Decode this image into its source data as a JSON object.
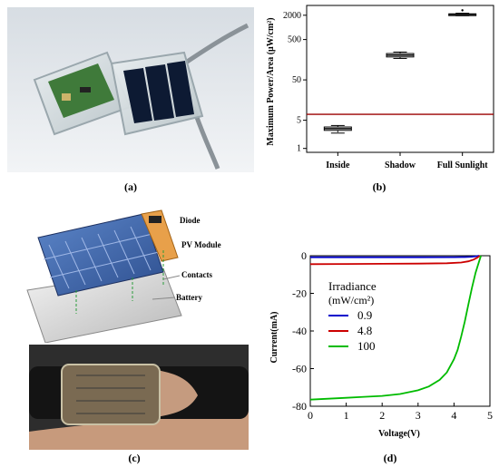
{
  "panels": {
    "a": {
      "caption": "(a)"
    },
    "b": {
      "caption": "(b)"
    },
    "c": {
      "caption": "(c)"
    },
    "d": {
      "caption": "(d)"
    }
  },
  "diagram_c": {
    "labels": {
      "diode": "Diode",
      "pv_module": "PV Module",
      "contacts": "Contacts",
      "battery": "Battery"
    }
  },
  "chart_data": [
    {
      "type": "box",
      "ylabel": "Maximum Power/Area (μW/cm²)",
      "y_scale": "log",
      "ylim": [
        0.8,
        3500
      ],
      "yticks": [
        1,
        5,
        50,
        500,
        2000
      ],
      "categories": [
        "Inside",
        "Shadow",
        "Full Sunlight"
      ],
      "boxes": [
        {
          "category": "Inside",
          "min": 2.4,
          "q1": 2.8,
          "median": 3.1,
          "q3": 3.4,
          "max": 3.7
        },
        {
          "category": "Shadow",
          "min": 170,
          "q1": 185,
          "median": 205,
          "q3": 225,
          "max": 245
        },
        {
          "category": "Full Sunlight",
          "min": 1950,
          "q1": 2030,
          "median": 2100,
          "q3": 2170,
          "max": 2240,
          "outlier": 2650
        }
      ],
      "reference_line": {
        "y": 7,
        "color": "#9b0000"
      },
      "grid": false
    },
    {
      "type": "line",
      "xlabel": "Voltage(V)",
      "ylabel": "Current(mA)",
      "xlim": [
        0,
        5
      ],
      "ylim": [
        -80,
        0
      ],
      "xticks": [
        0,
        1,
        2,
        3,
        4,
        5
      ],
      "yticks": [
        0,
        -20,
        -40,
        -60,
        -80
      ],
      "legend": {
        "title": "Irradiance",
        "subtitle": "(mW/cm²)",
        "placement": "center-left"
      },
      "series": [
        {
          "name": "0.9",
          "color": "#0000cc",
          "x": [
            0,
            1,
            2,
            3,
            4,
            4.3,
            4.5,
            4.6,
            4.7
          ],
          "y": [
            -0.8,
            -0.8,
            -0.8,
            -0.8,
            -0.75,
            -0.7,
            -0.55,
            -0.3,
            0
          ]
        },
        {
          "name": "4.8",
          "color": "#cc0000",
          "x": [
            0,
            1,
            2,
            3,
            3.8,
            4.2,
            4.4,
            4.55,
            4.65,
            4.72
          ],
          "y": [
            -4.5,
            -4.4,
            -4.3,
            -4.2,
            -4.0,
            -3.6,
            -3.0,
            -2.0,
            -1.0,
            0
          ]
        },
        {
          "name": "100",
          "color": "#00bb00",
          "x": [
            0,
            0.5,
            1,
            1.5,
            2,
            2.5,
            3,
            3.3,
            3.6,
            3.8,
            4.0,
            4.1,
            4.2,
            4.3,
            4.4,
            4.5,
            4.6,
            4.7,
            4.75
          ],
          "y": [
            -76.5,
            -76,
            -75.5,
            -75,
            -74.5,
            -73.5,
            -71.5,
            -69.5,
            -66,
            -62,
            -55,
            -50,
            -43,
            -35,
            -26,
            -17,
            -9,
            -3,
            0
          ]
        }
      ],
      "grid": false
    }
  ]
}
